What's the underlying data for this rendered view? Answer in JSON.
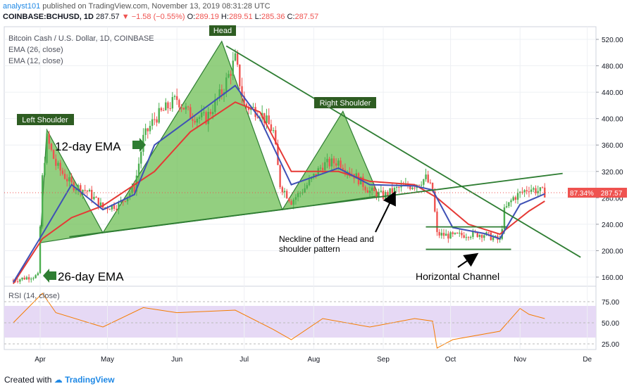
{
  "header": {
    "author": "analyst101",
    "published": "published on TradingView.com, November 13, 2019 08:31:28 UTC",
    "symbol": "COINBASE:BCHUSD, 1D",
    "last": "287.57",
    "change": "−1.58 (−0.55%)",
    "ohlc": {
      "O": "289.19",
      "H": "289.51",
      "L": "285.36",
      "C": "287.57"
    }
  },
  "footer": {
    "created_with": "Created with",
    "brand": "TradingView"
  },
  "chart_data": {
    "type": "line",
    "title": "Bitcoin Cash / U.S. Dollar, 1D, COINBASE",
    "legend": [
      "EMA (26, close)",
      "EMA (12, close)"
    ],
    "x_ticks": [
      "Apr",
      "May",
      "Jun",
      "Jul",
      "Aug",
      "Sep",
      "Oct",
      "Nov",
      "De"
    ],
    "y_ticks": [
      "520.00",
      "480.00",
      "440.00",
      "400.00",
      "360.00",
      "320.00",
      "280.00",
      "240.00",
      "200.00",
      "160.00"
    ],
    "ylim": [
      150,
      525
    ],
    "price_label": "287.57",
    "price_pct_label": "87.34%",
    "price_approx": [
      [
        "Mar 20",
        155
      ],
      [
        "Mar 27",
        160
      ],
      [
        "Mar 31",
        162
      ],
      [
        "Apr 2",
        310
      ],
      [
        "Apr 4",
        370
      ],
      [
        "Apr 8",
        330
      ],
      [
        "Apr 15",
        300
      ],
      [
        "Apr 22",
        290
      ],
      [
        "Apr 29",
        265
      ],
      [
        "May 6",
        270
      ],
      [
        "May 13",
        295
      ],
      [
        "May 17",
        370
      ],
      [
        "May 22",
        400
      ],
      [
        "Jun 1",
        430
      ],
      [
        "Jun 7",
        405
      ],
      [
        "Jun 14",
        400
      ],
      [
        "Jun 21",
        440
      ],
      [
        "Jun 27",
        490
      ],
      [
        "Jul 1",
        420
      ],
      [
        "Jul 8",
        410
      ],
      [
        "Jul 14",
        380
      ],
      [
        "Jul 17",
        300
      ],
      [
        "Jul 22",
        275
      ],
      [
        "Jul 28",
        295
      ],
      [
        "Aug 5",
        330
      ],
      [
        "Aug 12",
        335
      ],
      [
        "Aug 19",
        315
      ],
      [
        "Aug 26",
        290
      ],
      [
        "Sep 1",
        283
      ],
      [
        "Sep 8",
        295
      ],
      [
        "Sep 15",
        300
      ],
      [
        "Sep 20",
        310
      ],
      [
        "Sep 23",
        290
      ],
      [
        "Sep 25",
        225
      ],
      [
        "Oct 2",
        222
      ],
      [
        "Oct 9",
        225
      ],
      [
        "Oct 16",
        225
      ],
      [
        "Oct 23",
        215
      ],
      [
        "Oct 25",
        260
      ],
      [
        "Oct 29",
        280
      ],
      [
        "Nov 5",
        295
      ],
      [
        "Nov 12",
        287.57
      ]
    ],
    "ema12_approx": [
      [
        "Mar 20",
        152
      ],
      [
        "Apr 2",
        225
      ],
      [
        "Apr 15",
        300
      ],
      [
        "Apr 29",
        262
      ],
      [
        "May 13",
        285
      ],
      [
        "May 22",
        360
      ],
      [
        "Jun 7",
        400
      ],
      [
        "Jun 27",
        450
      ],
      [
        "Jul 8",
        400
      ],
      [
        "Jul 22",
        300
      ],
      [
        "Aug 12",
        325
      ],
      [
        "Aug 26",
        300
      ],
      [
        "Sep 15",
        298
      ],
      [
        "Sep 23",
        292
      ],
      [
        "Oct 2",
        235
      ],
      [
        "Oct 16",
        226
      ],
      [
        "Oct 23",
        218
      ],
      [
        "Nov 1",
        270
      ],
      [
        "Nov 12",
        286
      ]
    ],
    "ema26_approx": [
      [
        "Mar 20",
        150
      ],
      [
        "Apr 2",
        218
      ],
      [
        "Apr 15",
        250
      ],
      [
        "Apr 29",
        268
      ],
      [
        "May 22",
        320
      ],
      [
        "Jun 7",
        380
      ],
      [
        "Jun 27",
        425
      ],
      [
        "Jul 8",
        410
      ],
      [
        "Jul 22",
        320
      ],
      [
        "Aug 12",
        320
      ],
      [
        "Aug 26",
        305
      ],
      [
        "Sep 15",
        300
      ],
      [
        "Sep 25",
        280
      ],
      [
        "Oct 9",
        240
      ],
      [
        "Oct 23",
        225
      ],
      [
        "Nov 5",
        260
      ],
      [
        "Nov 12",
        275
      ]
    ],
    "rsi": {
      "label": "RSI (14, close)",
      "y_ticks": [
        "75.00",
        "50.00",
        "25.00"
      ],
      "band": [
        30,
        70
      ],
      "values_approx": [
        [
          "Mar 20",
          50
        ],
        [
          "Apr 2",
          85
        ],
        [
          "Apr 8",
          62
        ],
        [
          "Apr 29",
          45
        ],
        [
          "May 17",
          68
        ],
        [
          "Jun 1",
          62
        ],
        [
          "Jun 27",
          65
        ],
        [
          "Jul 14",
          42
        ],
        [
          "Jul 22",
          30
        ],
        [
          "Aug 5",
          55
        ],
        [
          "Aug 26",
          45
        ],
        [
          "Sep 15",
          55
        ],
        [
          "Sep 23",
          52
        ],
        [
          "Sep 25",
          20
        ],
        [
          "Oct 2",
          30
        ],
        [
          "Oct 23",
          40
        ],
        [
          "Nov 1",
          67
        ],
        [
          "Nov 5",
          60
        ],
        [
          "Nov 12",
          55
        ]
      ]
    }
  },
  "annotations": {
    "left_shoulder": "Left Shoulder",
    "head": "Head",
    "right_shoulder": "Right Shoulder",
    "ema12": "12-day EMA",
    "ema26": "26-day EMA",
    "neckline_1": "Neckline of the Head and",
    "neckline_2": "shoulder pattern",
    "channel": "Horizontal Channel"
  },
  "colors": {
    "ema26": "#e53935",
    "ema12": "#3f51b5",
    "up": "#4caf50",
    "down": "#ef5350",
    "pattern_fill": "#6fbf56",
    "trendline": "#2e7d32",
    "rsi_line": "#f57c00",
    "rsi_band": "#e6d9f5"
  }
}
